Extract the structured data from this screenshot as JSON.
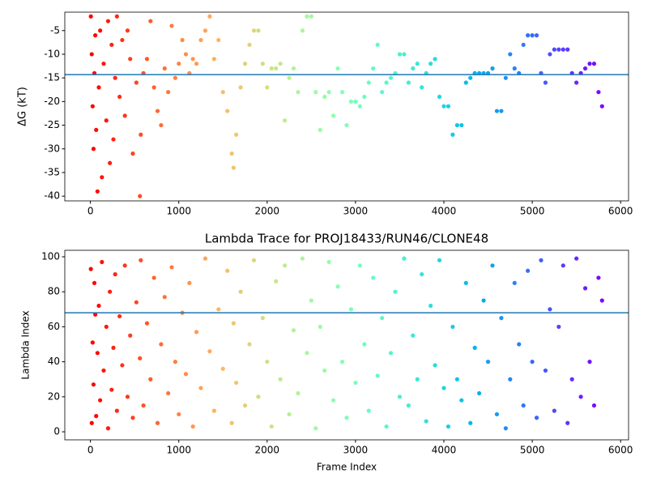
{
  "chart_data": [
    {
      "type": "scatter",
      "ylabel": "ΔG (kT)",
      "x": [
        5,
        15,
        25,
        35,
        45,
        55,
        65,
        80,
        95,
        110,
        130,
        150,
        180,
        200,
        220,
        240,
        260,
        280,
        300,
        330,
        360,
        390,
        420,
        450,
        480,
        520,
        560,
        570,
        600,
        640,
        680,
        720,
        760,
        800,
        840,
        880,
        920,
        960,
        1000,
        1040,
        1080,
        1120,
        1160,
        1200,
        1250,
        1300,
        1350,
        1400,
        1450,
        1500,
        1550,
        1600,
        1620,
        1650,
        1700,
        1750,
        1800,
        1850,
        1900,
        1950,
        2000,
        2050,
        2100,
        2150,
        2200,
        2250,
        2300,
        2350,
        2400,
        2450,
        2500,
        2550,
        2600,
        2650,
        2700,
        2750,
        2800,
        2850,
        2900,
        2950,
        3000,
        3050,
        3100,
        3150,
        3200,
        3250,
        3300,
        3350,
        3400,
        3450,
        3500,
        3550,
        3600,
        3650,
        3700,
        3750,
        3800,
        3850,
        3900,
        3950,
        4000,
        4050,
        4100,
        4150,
        4200,
        4250,
        4300,
        4350,
        4400,
        4450,
        4500,
        4550,
        4600,
        4650,
        4700,
        4750,
        4800,
        4850,
        4900,
        4950,
        5000,
        5050,
        5100,
        5150,
        5200,
        5250,
        5300,
        5350,
        5400,
        5450,
        5500,
        5550,
        5600,
        5650,
        5700,
        5750,
        5790
      ],
      "values": [
        -2,
        -10,
        -21,
        -30,
        -14,
        -6,
        -26,
        -39,
        -17,
        -5,
        -36,
        -12,
        -24,
        -3,
        -33,
        -8,
        -28,
        -15,
        -2,
        -19,
        -7,
        -23,
        -5,
        -11,
        -31,
        -16,
        -40,
        -27,
        -14,
        -11,
        -3,
        -17,
        -22,
        -25,
        -13,
        -18,
        -4,
        -15,
        -12,
        -7,
        -10,
        -14,
        -11,
        -12,
        -7,
        -5,
        -2,
        -11,
        -7,
        -18,
        -22,
        -31,
        -34,
        -27,
        -17,
        -12,
        -8,
        -5,
        -5,
        -12,
        -17,
        -13,
        -13,
        -12,
        -24,
        -15,
        -13,
        -18,
        -5,
        -2,
        -2,
        -18,
        -26,
        -19,
        -18,
        -23,
        -13,
        -18,
        -25,
        -20,
        -20,
        -21,
        -19,
        -16,
        -13,
        -8,
        -18,
        -16,
        -15,
        -14,
        -10,
        -10,
        -16,
        -13,
        -12,
        -17,
        -14,
        -12,
        -11,
        -19,
        -21,
        -21,
        -27,
        -25,
        -25,
        -16,
        -15,
        -14,
        -14,
        -14,
        -14,
        -13,
        -22,
        -22,
        -15,
        -10,
        -13,
        -14,
        -8,
        -6,
        -6,
        -6,
        -14,
        -16,
        -10,
        -9,
        -9,
        -9,
        -9,
        -14,
        -16,
        -14,
        -13,
        -12,
        -12,
        -18,
        -21
      ],
      "colormap": "rainbow_r",
      "hline": {
        "value": -14.3,
        "color": "#1f77b4"
      },
      "xlim": [
        -290,
        6090
      ],
      "xticks": [
        0,
        1000,
        2000,
        3000,
        4000,
        5000,
        6000
      ],
      "ylim": [
        -41.0,
        -1.1
      ],
      "yticks": [
        -40,
        -35,
        -30,
        -25,
        -20,
        -15,
        -10,
        -5
      ]
    },
    {
      "type": "scatter",
      "title": "Lambda Trace for PROJ18433/RUN46/CLONE48",
      "xlabel": "Frame Index",
      "ylabel": "Lambda Index",
      "x": [
        5,
        15,
        25,
        35,
        45,
        55,
        65,
        80,
        95,
        110,
        130,
        150,
        180,
        200,
        220,
        240,
        260,
        280,
        300,
        330,
        360,
        390,
        420,
        450,
        480,
        520,
        560,
        570,
        600,
        640,
        680,
        720,
        760,
        800,
        840,
        880,
        920,
        960,
        1000,
        1040,
        1080,
        1120,
        1160,
        1200,
        1250,
        1300,
        1350,
        1400,
        1450,
        1500,
        1550,
        1600,
        1620,
        1650,
        1700,
        1750,
        1800,
        1850,
        1900,
        1950,
        2000,
        2050,
        2100,
        2150,
        2200,
        2250,
        2300,
        2350,
        2400,
        2450,
        2500,
        2550,
        2600,
        2650,
        2700,
        2750,
        2800,
        2850,
        2900,
        2950,
        3000,
        3050,
        3100,
        3150,
        3200,
        3250,
        3300,
        3350,
        3400,
        3450,
        3500,
        3550,
        3600,
        3650,
        3700,
        3750,
        3800,
        3850,
        3900,
        3950,
        4000,
        4050,
        4100,
        4150,
        4200,
        4250,
        4300,
        4350,
        4400,
        4450,
        4500,
        4550,
        4600,
        4650,
        4700,
        4750,
        4800,
        4850,
        4900,
        4950,
        5000,
        5050,
        5100,
        5150,
        5200,
        5250,
        5300,
        5350,
        5400,
        5450,
        5500,
        5550,
        5600,
        5650,
        5700,
        5750,
        5790
      ],
      "values": [
        93,
        5,
        51,
        27,
        85,
        67,
        9,
        45,
        72,
        18,
        97,
        35,
        60,
        2,
        80,
        24,
        48,
        90,
        12,
        66,
        38,
        95,
        20,
        55,
        8,
        74,
        42,
        98,
        15,
        62,
        30,
        88,
        5,
        50,
        77,
        22,
        94,
        40,
        10,
        68,
        33,
        85,
        3,
        57,
        25,
        99,
        46,
        12,
        70,
        36,
        92,
        5,
        62,
        28,
        80,
        15,
        50,
        98,
        20,
        65,
        40,
        3,
        86,
        30,
        95,
        10,
        58,
        22,
        99,
        45,
        75,
        2,
        60,
        35,
        97,
        18,
        83,
        40,
        8,
        70,
        28,
        95,
        50,
        12,
        88,
        32,
        65,
        3,
        45,
        80,
        20,
        99,
        15,
        55,
        30,
        90,
        6,
        72,
        38,
        98,
        25,
        3,
        60,
        30,
        18,
        85,
        5,
        48,
        22,
        75,
        40,
        95,
        10,
        65,
        2,
        30,
        85,
        50,
        15,
        92,
        40,
        8,
        98,
        35,
        70,
        12,
        60,
        95,
        5,
        30,
        99,
        20,
        82,
        40,
        15,
        88,
        75
      ],
      "colormap": "rainbow_r",
      "hline": {
        "value": 68,
        "color": "#1f77b4"
      },
      "xlim": [
        -290,
        6090
      ],
      "xticks": [
        0,
        1000,
        2000,
        3000,
        4000,
        5000,
        6000
      ],
      "ylim": [
        -4.6,
        103.7
      ],
      "yticks": [
        0,
        20,
        40,
        60,
        80,
        100
      ]
    }
  ]
}
